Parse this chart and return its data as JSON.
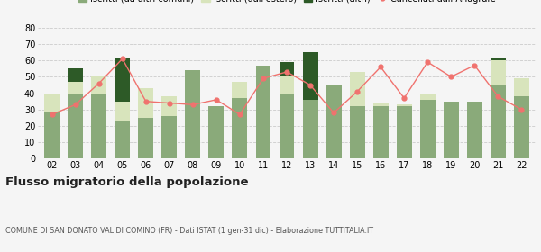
{
  "years": [
    "02",
    "03",
    "04",
    "05",
    "06",
    "07",
    "08",
    "09",
    "10",
    "11",
    "12",
    "13",
    "14",
    "15",
    "16",
    "17",
    "18",
    "19",
    "20",
    "21",
    "22"
  ],
  "iscritti_comuni": [
    28,
    40,
    40,
    23,
    25,
    26,
    54,
    32,
    37,
    57,
    40,
    36,
    45,
    32,
    32,
    32,
    36,
    35,
    35,
    45,
    38
  ],
  "iscritti_estero": [
    12,
    7,
    11,
    12,
    18,
    12,
    0,
    0,
    10,
    0,
    11,
    0,
    0,
    21,
    2,
    1,
    4,
    0,
    0,
    15,
    11
  ],
  "iscritti_altri": [
    0,
    8,
    0,
    26,
    0,
    0,
    0,
    0,
    0,
    0,
    8,
    29,
    0,
    0,
    0,
    0,
    0,
    0,
    0,
    1,
    0
  ],
  "cancellati": [
    27,
    33,
    46,
    61,
    35,
    34,
    33,
    36,
    27,
    49,
    53,
    45,
    28,
    41,
    56,
    37,
    59,
    50,
    57,
    38,
    30
  ],
  "color_comuni": "#8aaa7a",
  "color_estero": "#d8e4bc",
  "color_altri": "#2d5a27",
  "color_cancellati": "#f0726e",
  "title": "Flusso migratorio della popolazione",
  "subtitle": "COMUNE DI SAN DONATO VAL DI COMINO (FR) - Dati ISTAT (1 gen-31 dic) - Elaborazione TUTTITALIA.IT",
  "ylim": [
    0,
    80
  ],
  "yticks": [
    0,
    10,
    20,
    30,
    40,
    50,
    60,
    70,
    80
  ],
  "background_color": "#f5f5f5"
}
